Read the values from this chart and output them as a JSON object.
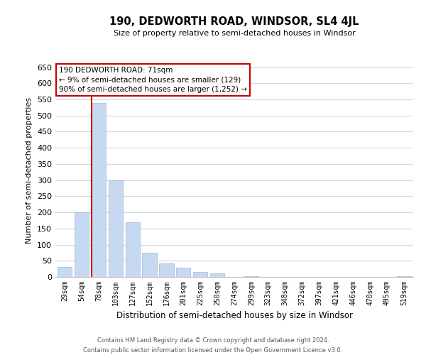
{
  "title": "190, DEDWORTH ROAD, WINDSOR, SL4 4JL",
  "subtitle": "Size of property relative to semi-detached houses in Windsor",
  "xlabel": "Distribution of semi-detached houses by size in Windsor",
  "ylabel": "Number of semi-detached properties",
  "bar_labels": [
    "29sqm",
    "54sqm",
    "78sqm",
    "103sqm",
    "127sqm",
    "152sqm",
    "176sqm",
    "201sqm",
    "225sqm",
    "250sqm",
    "274sqm",
    "299sqm",
    "323sqm",
    "348sqm",
    "372sqm",
    "397sqm",
    "421sqm",
    "446sqm",
    "470sqm",
    "495sqm",
    "519sqm"
  ],
  "bar_values": [
    30,
    200,
    540,
    300,
    170,
    75,
    42,
    28,
    15,
    10,
    0,
    2,
    0,
    0,
    0,
    0,
    0,
    0,
    0,
    0,
    2
  ],
  "bar_color": "#c6d9f0",
  "bar_edge_color": "#aabfd8",
  "property_line_index": 2,
  "property_line_color": "#cc0000",
  "ylim": [
    0,
    660
  ],
  "yticks": [
    0,
    50,
    100,
    150,
    200,
    250,
    300,
    350,
    400,
    450,
    500,
    550,
    600,
    650
  ],
  "annotation_title": "190 DEDWORTH ROAD: 71sqm",
  "annotation_line1": "← 9% of semi-detached houses are smaller (129)",
  "annotation_line2": "90% of semi-detached houses are larger (1,252) →",
  "annotation_box_color": "#ffffff",
  "annotation_box_edge": "#cc0000",
  "footer_line1": "Contains HM Land Registry data © Crown copyright and database right 2024.",
  "footer_line2": "Contains public sector information licensed under the Open Government Licence v3.0.",
  "background_color": "#ffffff",
  "grid_color": "#d0d8e4"
}
